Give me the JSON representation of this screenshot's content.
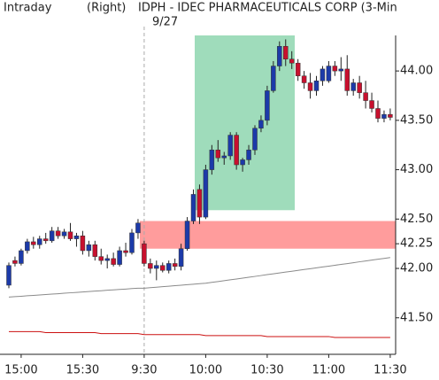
{
  "chart_data": {
    "type": "candlestick",
    "header": {
      "left": "Intraday",
      "axis_side": "(Right)",
      "title": "IDPH - IDEC PHARMACEUTICALS CORP (3-Min",
      "date": "9/27"
    },
    "categories": [
      null,
      null,
      "15:00",
      null,
      null,
      null,
      null,
      null,
      null,
      null,
      null,
      null,
      "15:30",
      null,
      null,
      null,
      null,
      null,
      null,
      null,
      null,
      null,
      "9:30",
      null,
      null,
      null,
      null,
      null,
      null,
      null,
      null,
      null,
      "10:00",
      null,
      null,
      null,
      null,
      null,
      null,
      null,
      null,
      null,
      "10:30",
      null,
      null,
      null,
      null,
      null,
      null,
      null,
      null,
      null,
      "11:00",
      null,
      null,
      null,
      null,
      null,
      null,
      null,
      null,
      null,
      "11:30"
    ],
    "open": [
      41.83,
      42.08,
      42.05,
      42.18,
      42.27,
      42.24,
      42.3,
      42.28,
      42.38,
      42.33,
      42.37,
      42.3,
      42.33,
      42.18,
      42.24,
      42.12,
      42.08,
      42.1,
      42.04,
      42.18,
      42.16,
      42.36,
      42.25,
      42.05,
      42.0,
      42.03,
      41.98,
      42.05,
      42.02,
      42.2,
      42.48,
      42.8,
      42.52,
      43.0,
      43.2,
      43.12,
      43.14,
      43.35,
      43.05,
      43.1,
      43.2,
      43.42,
      43.5,
      43.8,
      44.05,
      44.25,
      44.12,
      44.08,
      43.95,
      43.88,
      43.8,
      43.9,
      43.9,
      44.05,
      44.0,
      44.02,
      43.8,
      43.88,
      43.78,
      43.7,
      43.62,
      43.52,
      43.56
    ],
    "high": [
      42.06,
      42.12,
      42.2,
      42.3,
      42.32,
      42.33,
      42.36,
      42.42,
      42.42,
      42.4,
      42.46,
      42.36,
      42.38,
      42.28,
      42.28,
      42.2,
      42.14,
      42.16,
      42.22,
      42.26,
      42.4,
      42.5,
      42.28,
      42.1,
      42.08,
      42.06,
      42.08,
      42.1,
      42.25,
      42.52,
      42.8,
      42.85,
      43.05,
      43.25,
      43.3,
      43.18,
      43.38,
      43.38,
      43.12,
      43.25,
      43.45,
      43.55,
      43.85,
      44.1,
      44.3,
      44.32,
      44.2,
      44.12,
      44.0,
      43.98,
      43.95,
      44.05,
      44.1,
      44.1,
      44.14,
      44.16,
      43.92,
      43.95,
      43.9,
      43.78,
      43.7,
      43.6,
      43.62
    ],
    "low": [
      41.8,
      42.02,
      42.03,
      42.15,
      42.2,
      42.2,
      42.25,
      42.26,
      42.3,
      42.3,
      42.28,
      42.22,
      42.14,
      42.12,
      42.08,
      42.04,
      42.0,
      42.02,
      42.02,
      42.12,
      42.14,
      42.3,
      42.02,
      41.95,
      41.88,
      41.96,
      41.95,
      41.98,
      41.98,
      42.18,
      42.45,
      42.45,
      42.5,
      42.95,
      43.08,
      43.05,
      43.1,
      43.0,
      42.98,
      43.05,
      43.15,
      43.38,
      43.45,
      43.78,
      44.0,
      44.05,
      44.02,
      43.9,
      43.82,
      43.72,
      43.75,
      43.85,
      43.88,
      43.95,
      43.9,
      43.75,
      43.75,
      43.72,
      43.62,
      43.58,
      43.48,
      43.48,
      43.5
    ],
    "close": [
      42.03,
      42.05,
      42.18,
      42.27,
      42.24,
      42.3,
      42.28,
      42.38,
      42.33,
      42.37,
      42.3,
      42.33,
      42.18,
      42.24,
      42.12,
      42.08,
      42.1,
      42.04,
      42.18,
      42.16,
      42.36,
      42.46,
      42.05,
      42.0,
      42.03,
      41.98,
      42.05,
      42.02,
      42.2,
      42.48,
      42.75,
      42.52,
      43.0,
      43.2,
      43.12,
      43.14,
      43.35,
      43.05,
      43.1,
      43.2,
      43.42,
      43.5,
      43.8,
      44.05,
      44.25,
      44.12,
      44.08,
      43.95,
      43.88,
      43.8,
      43.9,
      44.02,
      44.05,
      44.0,
      44.02,
      43.8,
      43.88,
      43.78,
      43.7,
      43.62,
      43.52,
      43.56,
      43.53
    ],
    "up_color": "#1c3aa9",
    "down_color": "#c8102e",
    "overlays": [
      {
        "color": "#8a8a8a",
        "values": [
          41.71,
          41.714,
          41.718,
          41.723,
          41.727,
          41.731,
          41.736,
          41.74,
          41.744,
          41.749,
          41.753,
          41.757,
          41.761,
          41.766,
          41.77,
          41.774,
          41.779,
          41.783,
          41.787,
          41.791,
          41.796,
          41.8,
          41.8,
          41.805,
          41.81,
          41.815,
          41.82,
          41.825,
          41.83,
          41.835,
          41.84,
          41.845,
          41.85,
          41.859,
          41.867,
          41.876,
          41.885,
          41.893,
          41.902,
          41.911,
          41.919,
          41.928,
          41.937,
          41.945,
          41.954,
          41.963,
          41.971,
          41.98,
          41.989,
          41.997,
          42.006,
          42.015,
          42.023,
          42.032,
          42.041,
          42.049,
          42.058,
          42.067,
          42.075,
          42.084,
          42.093,
          42.101,
          42.11
        ]
      },
      {
        "color": "#cc1111",
        "values": [
          41.36,
          41.36,
          41.36,
          41.36,
          41.36,
          41.36,
          41.35,
          41.35,
          41.35,
          41.35,
          41.35,
          41.35,
          41.35,
          41.35,
          41.35,
          41.34,
          41.34,
          41.34,
          41.34,
          41.34,
          41.34,
          41.34,
          41.33,
          41.33,
          41.33,
          41.33,
          41.33,
          41.33,
          41.33,
          41.33,
          41.33,
          41.33,
          41.32,
          41.32,
          41.32,
          41.32,
          41.32,
          41.32,
          41.32,
          41.32,
          41.32,
          41.32,
          41.31,
          41.31,
          41.31,
          41.31,
          41.31,
          41.31,
          41.31,
          41.31,
          41.31,
          41.31,
          41.31,
          41.3,
          41.3,
          41.3,
          41.3,
          41.3,
          41.3,
          41.3,
          41.3,
          41.3,
          41.3
        ]
      }
    ],
    "zones": [
      {
        "color": "#9fdcbb",
        "low": 42.59,
        "high": 44.36
      },
      {
        "color": "#ff9c9c",
        "low": 42.2,
        "high": 42.48
      }
    ],
    "ylim": [
      41.13,
      44.36
    ],
    "yticks": [
      {
        "value": 41.5,
        "label": "41.50"
      },
      {
        "value": 42,
        "label": "42.00"
      },
      {
        "value": 42.25,
        "label": "42.25"
      },
      {
        "value": 42.5,
        "label": "42.50"
      },
      {
        "value": 43,
        "label": "43.00"
      },
      {
        "value": 43.5,
        "label": "43.50"
      },
      {
        "value": 44,
        "label": "44.00"
      }
    ]
  }
}
